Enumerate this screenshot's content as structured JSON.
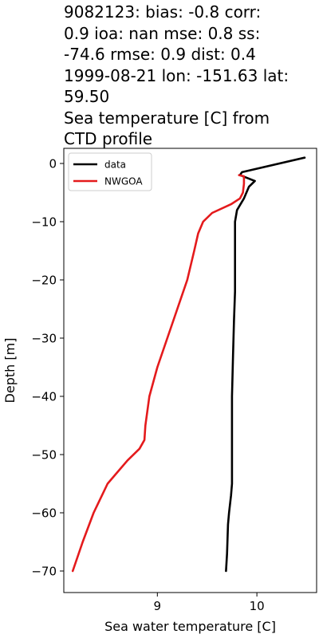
{
  "title_lines": [
    "9082123: bias: -0.8  corr:",
    "0.9  ioa: nan  mse: 0.8  ss:",
    "-74.6  rmse: 0.9  dist: 0.4",
    "1999-08-21 lon: -151.63 lat:",
    "59.50",
    "Sea temperature [C] from",
    "CTD profile"
  ],
  "chart_data": {
    "type": "line",
    "title": "9082123: bias: -0.8  corr: 0.9  ioa: nan  mse: 0.8  ss: -74.6  rmse: 0.9  dist: 0.4 1999-08-21 lon: -151.63 lat: 59.50 Sea temperature [C] from CTD profile",
    "xlabel": "Sea water temperature [C]",
    "ylabel": "Depth [m]",
    "xlim": [
      8.06,
      10.6
    ],
    "ylim": [
      -73.7,
      2.6
    ],
    "xticks": [
      9,
      10
    ],
    "xtick_labels": [
      "9",
      "10"
    ],
    "yticks": [
      0,
      -10,
      -20,
      -30,
      -40,
      -50,
      -60,
      -70
    ],
    "ytick_labels": [
      "0",
      "−10",
      "−20",
      "−30",
      "−40",
      "−50",
      "−60",
      "−70"
    ],
    "grid": false,
    "legend_position": "upper left",
    "series": [
      {
        "name": "data",
        "color": "#000000",
        "points": [
          [
            10.48,
            1.0
          ],
          [
            9.85,
            -1.5
          ],
          [
            9.83,
            -2.0
          ],
          [
            9.98,
            -3.0
          ],
          [
            9.92,
            -4.0
          ],
          [
            9.87,
            -6.0
          ],
          [
            9.8,
            -8.0
          ],
          [
            9.78,
            -10.0
          ],
          [
            9.78,
            -15.0
          ],
          [
            9.78,
            -22.0
          ],
          [
            9.77,
            -27.0
          ],
          [
            9.76,
            -33.0
          ],
          [
            9.75,
            -40.0
          ],
          [
            9.75,
            -50.0
          ],
          [
            9.75,
            -55.0
          ],
          [
            9.74,
            -57.0
          ],
          [
            9.72,
            -60.0
          ],
          [
            9.71,
            -62.0
          ],
          [
            9.7,
            -67.0
          ],
          [
            9.69,
            -70.0
          ]
        ]
      },
      {
        "name": "NWGOA",
        "color": "#e41a1c",
        "points": [
          [
            9.82,
            -2.0
          ],
          [
            9.87,
            -2.2
          ],
          [
            9.87,
            -3.5
          ],
          [
            9.86,
            -5.0
          ],
          [
            9.83,
            -6.0
          ],
          [
            9.74,
            -7.0
          ],
          [
            9.55,
            -8.5
          ],
          [
            9.46,
            -10.0
          ],
          [
            9.41,
            -12.0
          ],
          [
            9.37,
            -15.0
          ],
          [
            9.3,
            -20.0
          ],
          [
            9.2,
            -25.0
          ],
          [
            9.1,
            -30.0
          ],
          [
            9.0,
            -35.0
          ],
          [
            8.92,
            -40.0
          ],
          [
            8.88,
            -45.0
          ],
          [
            8.87,
            -47.5
          ],
          [
            8.82,
            -49.0
          ],
          [
            8.7,
            -51.0
          ],
          [
            8.6,
            -53.0
          ],
          [
            8.5,
            -55.0
          ],
          [
            8.36,
            -60.0
          ],
          [
            8.25,
            -65.0
          ],
          [
            8.15,
            -70.0
          ]
        ]
      }
    ]
  }
}
